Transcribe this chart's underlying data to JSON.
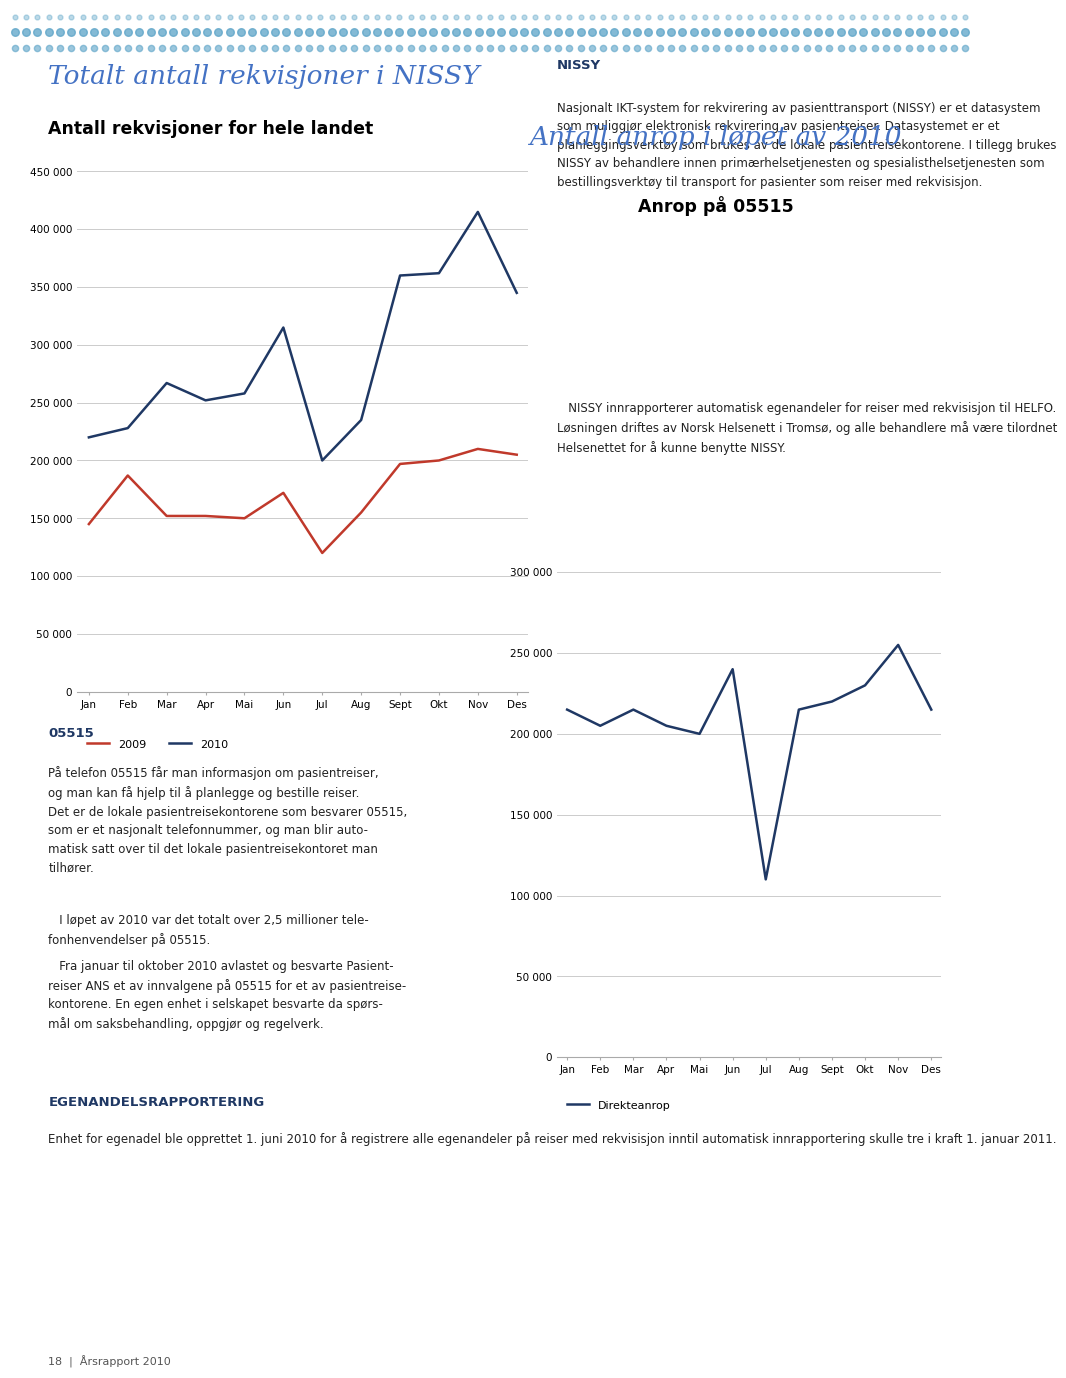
{
  "months": [
    "Jan",
    "Feb",
    "Mar",
    "Apr",
    "Mai",
    "Jun",
    "Jul",
    "Aug",
    "Sept",
    "Okt",
    "Nov",
    "Des"
  ],
  "chart1": {
    "title_main": "Totalt antall rekvisjoner i NISSY",
    "title_sub": "Antall rekvisjoner for hele landet",
    "series_2010": [
      220000,
      228000,
      267000,
      252000,
      258000,
      315000,
      200000,
      235000,
      360000,
      362000,
      415000,
      345000
    ],
    "series_2009": [
      145000,
      187000,
      152000,
      152000,
      150000,
      172000,
      120000,
      155000,
      197000,
      200000,
      210000,
      205000
    ],
    "color_2010": "#1F3864",
    "color_2009": "#C0392B",
    "ylim": [
      0,
      450000
    ],
    "yticks": [
      0,
      50000,
      100000,
      150000,
      200000,
      250000,
      300000,
      350000,
      400000,
      450000
    ],
    "legend_2009": "2009",
    "legend_2010": "2010"
  },
  "chart2": {
    "title_main": "Antall anrop i løpet av 2010",
    "title_sub": "Anrop på 05515",
    "series_direkteanrop": [
      215000,
      205000,
      215000,
      205000,
      200000,
      240000,
      110000,
      215000,
      220000,
      230000,
      255000,
      215000
    ],
    "color_direkteanrop": "#1F3864",
    "ylim": [
      0,
      300000
    ],
    "yticks": [
      0,
      50000,
      100000,
      150000,
      200000,
      250000,
      300000
    ],
    "legend_direkteanrop": "Direkteanrop"
  },
  "title_color": "#4472C4",
  "subtitle_color": "#000000",
  "bg_color": "#ffffff",
  "dot_color": "#5BA3C7",
  "nissy_header": "NISSY",
  "nissy_body": "Nasjonalt IKT-system for rekvirering av pasienttransport (NISSY) er et datasystem som muliggjør elektronisk rekvirering av pasientreiser. Datasystemet er et planleggingsverktøy som brukes av de lokale pasientreisekontorene. I tillegg brukes NISSY av behandlere innen primærhelsetjenesten og spesialisthelsetjenesten som bestillingsverktøy til transport for pasienter som reiser med rekvisisjon.",
  "nissy_body2": "   NISSY innrapporterer automatisk egenandeler for reiser med rekvisisjon til HELFO. Løsningen driftes av Norsk Helsenett i Tromsø, og alle behandlere må være tilordnet Helsenettet for å kunne benytte NISSY.",
  "text_05515_header": "05515",
  "text_05515_body": "På telefon 05515 får man informasjon om pasientreiser, og man kan få hjelp til å planlegge og bestille reiser. Det er de lokale pasientreisekontorene som besvarer 05515, som er et nasjonalt telefonnummer, og man blir automatisk satt over til det lokale pasientreisekontoret man tilhører.",
  "text_05515_body2": "   I løpet av 2010 var det totalt over 2,5 millioner telefonhenvendelser på 05515.",
  "text_05515_body3": "   Fra januar til oktober 2010 avlastet og besvarte PasientreiserANSetavinnvalgene på 05515 foretavpasientreisekontorene. En egen enhet i selskapet besvarte da spørsmål om saksbehandling, oppgjør og regelverk.",
  "egenadel_header": "EGENANDELSRAPPORTERING",
  "egenadel_body": "Enhet for egenadel ble opprettet 1. juni 2010 for å registrere alle egenandeler på reiser med rekvisisjon inntil automatisk innrapportering skulle tre i kraft 1. januar 2011.",
  "page_label": "18  |  Årsrapport 2010"
}
